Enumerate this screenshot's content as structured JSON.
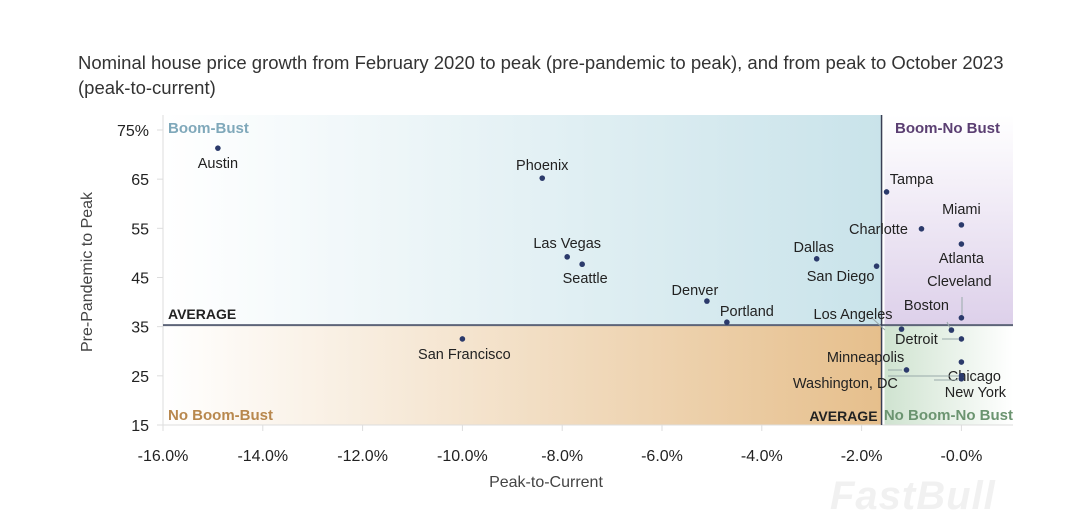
{
  "title": "Nominal house price growth from February 2020 to peak (pre-pandemic to peak), and from peak to October 2023 (peak-to-current)",
  "watermark": "FastBull",
  "chart_data": {
    "type": "scatter",
    "title": "Nominal house price growth from February 2020 to peak (pre-pandemic to peak), and from peak to October 2023 (peak-to-current)",
    "xlabel": "Peak-to-Current",
    "ylabel": "Pre-Pandemic to Peak",
    "xlim": [
      -16,
      0.8
    ],
    "ylim": [
      15,
      77
    ],
    "x_ticks": [
      -16,
      -14,
      -12,
      -10,
      -8,
      -6,
      -4,
      -2,
      0
    ],
    "x_tick_labels": [
      "-16.0%",
      "-14.0%",
      "-12.0%",
      "-10.0%",
      "-8.0%",
      "-6.0%",
      "-4.0%",
      "-2.0%",
      "-0.0%"
    ],
    "y_ticks": [
      75,
      65,
      55,
      45,
      35,
      25,
      15
    ],
    "y_tick_labels": [
      "75%",
      "65",
      "55",
      "45",
      "35",
      "25",
      "15"
    ],
    "grid": false,
    "average": {
      "x": -1.6,
      "y": 35.3,
      "x_label": "AVERAGE",
      "y_label": "AVERAGE"
    },
    "quadrants": [
      {
        "label": "Boom-Bust",
        "color": "#7fa8ba"
      },
      {
        "label": "Boom-No Bust",
        "color": "#5b3f72"
      },
      {
        "label": "No Boom-Bust",
        "color": "#b8884e"
      },
      {
        "label": "No Boom-No Bust",
        "color": "#6b9470"
      }
    ],
    "point_color": "#2b3a6b",
    "points": [
      {
        "name": "Austin",
        "x": -14.9,
        "y": 71.3
      },
      {
        "name": "Phoenix",
        "x": -8.4,
        "y": 65.2
      },
      {
        "name": "Las Vegas",
        "x": -7.9,
        "y": 49.2
      },
      {
        "name": "Seattle",
        "x": -7.6,
        "y": 47.7
      },
      {
        "name": "Denver",
        "x": -5.1,
        "y": 40.2
      },
      {
        "name": "Portland",
        "x": -4.7,
        "y": 35.9
      },
      {
        "name": "San Francisco",
        "x": -10.0,
        "y": 32.5
      },
      {
        "name": "Dallas",
        "x": -2.9,
        "y": 48.8
      },
      {
        "name": "San Diego",
        "x": -1.7,
        "y": 47.3
      },
      {
        "name": "Los Angeles",
        "x": -1.2,
        "y": 34.5
      },
      {
        "name": "Tampa",
        "x": -1.5,
        "y": 62.4
      },
      {
        "name": "Charlotte",
        "x": -0.8,
        "y": 54.9
      },
      {
        "name": "Miami",
        "x": 0.0,
        "y": 55.7
      },
      {
        "name": "Atlanta",
        "x": 0.0,
        "y": 51.8
      },
      {
        "name": "Cleveland",
        "x": 0.0,
        "y": 36.8
      },
      {
        "name": "Boston",
        "x": -0.2,
        "y": 34.3
      },
      {
        "name": "Detroit",
        "x": 0.0,
        "y": 32.5
      },
      {
        "name": "Chicago",
        "x": 0.0,
        "y": 27.8
      },
      {
        "name": "Minneapolis",
        "x": -1.1,
        "y": 26.2
      },
      {
        "name": "Washington, DC",
        "x": 0.0,
        "y": 25.0
      },
      {
        "name": "New York",
        "x": 0.0,
        "y": 24.4
      }
    ]
  }
}
